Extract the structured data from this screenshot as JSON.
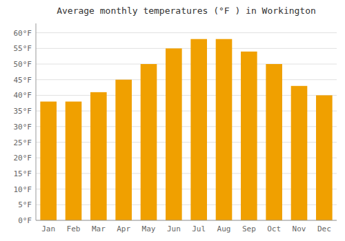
{
  "chart_data": {
    "type": "bar",
    "title": "Average monthly temperatures (°F ) in Workington",
    "categories": [
      "Jan",
      "Feb",
      "Mar",
      "Apr",
      "May",
      "Jun",
      "Jul",
      "Aug",
      "Sep",
      "Oct",
      "Nov",
      "Dec"
    ],
    "values": [
      38,
      38,
      41,
      45,
      50,
      55,
      58,
      58,
      54,
      50,
      43,
      40
    ],
    "color": "#F0A000",
    "ylim": [
      0,
      63
    ],
    "yticks": [
      {
        "value": 0,
        "label": "0°F"
      },
      {
        "value": 5,
        "label": "5°F"
      },
      {
        "value": 10,
        "label": "10°F"
      },
      {
        "value": 15,
        "label": "15°F"
      },
      {
        "value": 20,
        "label": "20°F"
      },
      {
        "value": 25,
        "label": "25°F"
      },
      {
        "value": 30,
        "label": "30°F"
      },
      {
        "value": 35,
        "label": "35°F"
      },
      {
        "value": 40,
        "label": "40°F"
      },
      {
        "value": 45,
        "label": "45°F"
      },
      {
        "value": 50,
        "label": "50°F"
      },
      {
        "value": 55,
        "label": "55°F"
      },
      {
        "value": 60,
        "label": "60°F"
      }
    ],
    "grid": true
  }
}
